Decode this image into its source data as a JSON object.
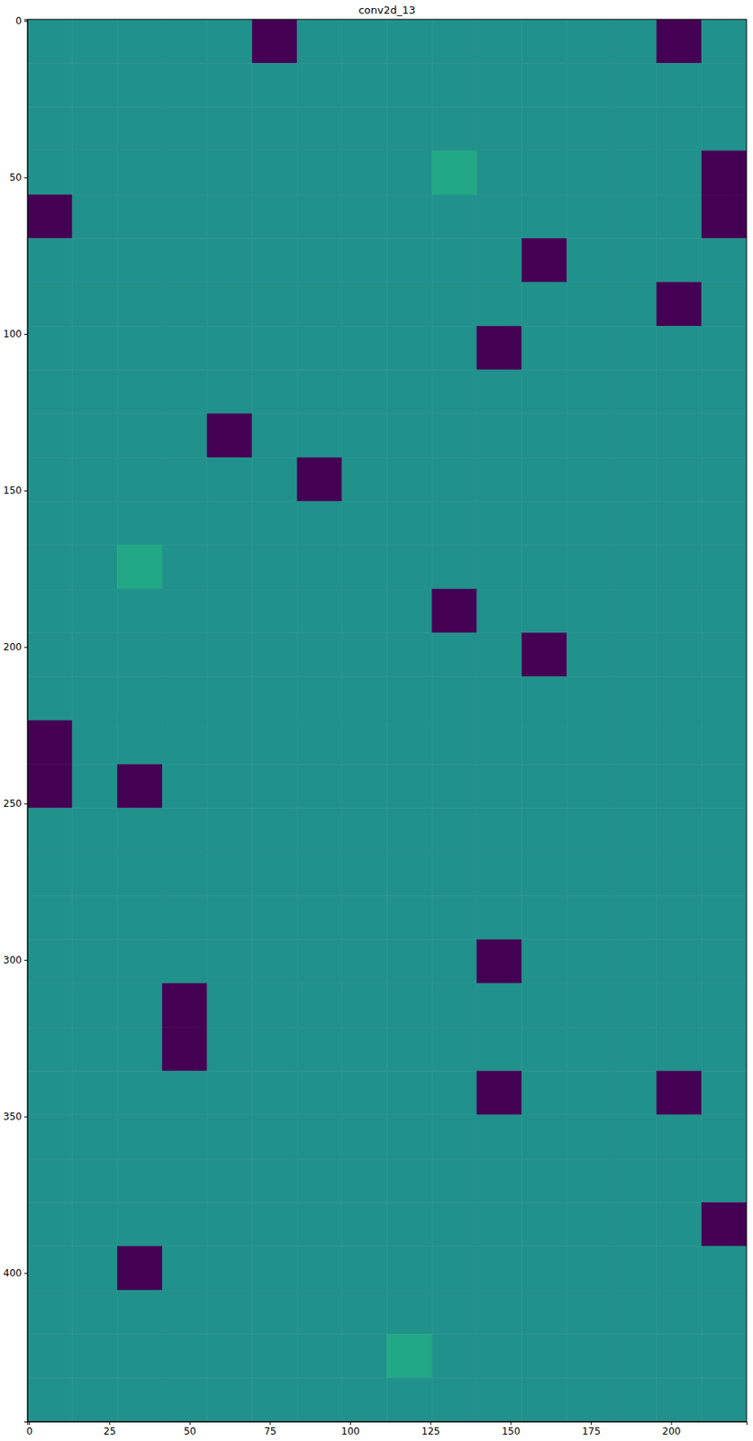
{
  "chart_data": {
    "type": "heatmap",
    "title": "conv2d_13",
    "xlim": [
      -0.5,
      223.5
    ],
    "ylim": [
      447.5,
      -0.5
    ],
    "xticks": [
      0,
      25,
      50,
      75,
      100,
      125,
      150,
      175,
      200
    ],
    "yticks": [
      0,
      50,
      100,
      150,
      200,
      250,
      300,
      350,
      400
    ],
    "x_edges": [
      -0.5,
      13.5,
      27.5,
      41.5,
      55.5,
      69.5,
      83.5,
      97.5,
      111.5,
      125.5,
      139.5,
      153.5,
      167.5,
      181.5,
      195.5,
      209.5,
      223.5
    ],
    "y_edges": [
      -0.5,
      13.5,
      27.5,
      41.5,
      55.5,
      69.5,
      83.5,
      97.5,
      111.5,
      125.5,
      139.5,
      153.5,
      167.5,
      181.5,
      195.5,
      209.5,
      223.5,
      237.5,
      251.5,
      265.5,
      279.5,
      293.5,
      307.5,
      321.5,
      335.5,
      349.5,
      363.5,
      377.5,
      391.5,
      405.5,
      419.5,
      433.5,
      447.5
    ],
    "clim": [
      0,
      1
    ],
    "cells": [
      [
        0.5,
        0.5,
        0.5,
        0.5,
        0.5,
        0,
        0.5,
        0.5,
        0.5,
        0.5,
        0.5,
        0.5,
        0.5,
        0.5,
        0,
        0.5
      ],
      [
        0.5,
        0.5,
        0.5,
        0.5,
        0.5,
        0.5,
        0.5,
        0.5,
        0.5,
        0.5,
        0.5,
        0.5,
        0.5,
        0.5,
        0.5,
        0.5
      ],
      [
        0.5,
        0.5,
        0.5,
        0.5,
        0.5,
        0.5,
        0.5,
        0.5,
        0.5,
        0.5,
        0.5,
        0.5,
        0.5,
        0.5,
        0.5,
        0.5
      ],
      [
        0.5,
        0.5,
        0.5,
        0.5,
        0.5,
        0.5,
        0.5,
        0.5,
        0.5,
        0.6,
        0.5,
        0.5,
        0.5,
        0.5,
        0.5,
        0
      ],
      [
        0,
        0.5,
        0.5,
        0.5,
        0.5,
        0.5,
        0.5,
        0.5,
        0.5,
        0.5,
        0.5,
        0.5,
        0.5,
        0.5,
        0.5,
        0
      ],
      [
        0.5,
        0.5,
        0.5,
        0.5,
        0.5,
        0.5,
        0.5,
        0.5,
        0.5,
        0.5,
        0.5,
        0,
        0.5,
        0.5,
        0.5,
        0.5
      ],
      [
        0.5,
        0.5,
        0.5,
        0.5,
        0.5,
        0.5,
        0.5,
        0.5,
        0.5,
        0.5,
        0.5,
        0.5,
        0.5,
        0.5,
        0,
        0.5
      ],
      [
        0.5,
        0.5,
        0.5,
        0.5,
        0.5,
        0.5,
        0.5,
        0.5,
        0.5,
        0.5,
        0,
        0.5,
        0.5,
        0.5,
        0.5,
        0.5
      ],
      [
        0.5,
        0.5,
        0.5,
        0.5,
        0.5,
        0.5,
        0.5,
        0.5,
        0.5,
        0.5,
        0.5,
        0.5,
        0.5,
        0.5,
        0.5,
        0.5
      ],
      [
        0.5,
        0.5,
        0.5,
        0.5,
        0,
        0.5,
        0.5,
        0.5,
        0.5,
        0.5,
        0.5,
        0.5,
        0.5,
        0.5,
        0.5,
        0.5
      ],
      [
        0.5,
        0.5,
        0.5,
        0.5,
        0.5,
        0.5,
        0,
        0.5,
        0.5,
        0.5,
        0.5,
        0.5,
        0.5,
        0.5,
        0.5,
        0.5
      ],
      [
        0.5,
        0.5,
        0.5,
        0.5,
        0.5,
        0.5,
        0.5,
        0.5,
        0.5,
        0.5,
        0.5,
        0.5,
        0.5,
        0.5,
        0.5,
        0.5
      ],
      [
        0.5,
        0.5,
        0.6,
        0.5,
        0.5,
        0.5,
        0.5,
        0.5,
        0.5,
        0.5,
        0.5,
        0.5,
        0.5,
        0.5,
        0.5,
        0.5
      ],
      [
        0.5,
        0.5,
        0.5,
        0.5,
        0.5,
        0.5,
        0.5,
        0.5,
        0.5,
        0,
        0.5,
        0.5,
        0.5,
        0.5,
        0.5,
        0.5
      ],
      [
        0.5,
        0.5,
        0.5,
        0.5,
        0.5,
        0.5,
        0.5,
        0.5,
        0.5,
        0.5,
        0.5,
        0,
        0.5,
        0.5,
        0.5,
        0.5
      ],
      [
        0.5,
        0.5,
        0.5,
        0.5,
        0.5,
        0.5,
        0.5,
        0.5,
        0.5,
        0.5,
        0.5,
        0.5,
        0.5,
        0.5,
        0.5,
        0.5
      ],
      [
        0,
        0.5,
        0.5,
        0.5,
        0.5,
        0.5,
        0.5,
        0.5,
        0.5,
        0.5,
        0.5,
        0.5,
        0.5,
        0.5,
        0.5,
        0.5
      ],
      [
        0,
        0.5,
        0,
        0.5,
        0.5,
        0.5,
        0.5,
        0.5,
        0.5,
        0.5,
        0.5,
        0.5,
        0.5,
        0.5,
        0.5,
        0.5
      ],
      [
        0.5,
        0.5,
        0.5,
        0.5,
        0.5,
        0.5,
        0.5,
        0.5,
        0.5,
        0.5,
        0.5,
        0.5,
        0.5,
        0.5,
        0.5,
        0.5
      ],
      [
        0.5,
        0.5,
        0.5,
        0.5,
        0.5,
        0.5,
        0.5,
        0.5,
        0.5,
        0.5,
        0.5,
        0.5,
        0.5,
        0.5,
        0.5,
        0.5
      ],
      [
        0.5,
        0.5,
        0.5,
        0.5,
        0.5,
        0.5,
        0.5,
        0.5,
        0.5,
        0.5,
        0.5,
        0.5,
        0.5,
        0.5,
        0.5,
        0.5
      ],
      [
        0.5,
        0.5,
        0.5,
        0.5,
        0.5,
        0.5,
        0.5,
        0.5,
        0.5,
        0.5,
        0,
        0.5,
        0.5,
        0.5,
        0.5,
        0.5
      ],
      [
        0.5,
        0.5,
        0.5,
        0,
        0.5,
        0.5,
        0.5,
        0.5,
        0.5,
        0.5,
        0.5,
        0.5,
        0.5,
        0.5,
        0.5,
        0.5
      ],
      [
        0.5,
        0.5,
        0.5,
        0,
        0.5,
        0.5,
        0.5,
        0.5,
        0.5,
        0.5,
        0.5,
        0.5,
        0.5,
        0.5,
        0.5,
        0.5
      ],
      [
        0.5,
        0.5,
        0.5,
        0.5,
        0.5,
        0.5,
        0.5,
        0.5,
        0.5,
        0.5,
        0,
        0.5,
        0.5,
        0.5,
        0,
        0.5
      ],
      [
        0.5,
        0.5,
        0.5,
        0.5,
        0.5,
        0.5,
        0.5,
        0.5,
        0.5,
        0.5,
        0.5,
        0.5,
        0.5,
        0.5,
        0.5,
        0.5
      ],
      [
        0.5,
        0.5,
        0.5,
        0.5,
        0.5,
        0.5,
        0.5,
        0.5,
        0.5,
        0.5,
        0.5,
        0.5,
        0.5,
        0.5,
        0.5,
        0.5
      ],
      [
        0.5,
        0.5,
        0.5,
        0.5,
        0.5,
        0.5,
        0.5,
        0.5,
        0.5,
        0.5,
        0.5,
        0.5,
        0.5,
        0.5,
        0.5,
        0
      ],
      [
        0.5,
        0.5,
        0,
        0.5,
        0.5,
        0.5,
        0.5,
        0.5,
        0.5,
        0.5,
        0.5,
        0.5,
        0.5,
        0.5,
        0.5,
        0.5
      ],
      [
        0.5,
        0.5,
        0.5,
        0.5,
        0.5,
        0.5,
        0.5,
        0.5,
        0.5,
        0.5,
        0.5,
        0.5,
        0.5,
        0.5,
        0.5,
        0.5
      ],
      [
        0.5,
        0.5,
        0.5,
        0.5,
        0.5,
        0.5,
        0.5,
        0.5,
        0.6,
        0.5,
        0.5,
        0.5,
        0.5,
        0.5,
        0.5,
        0.5
      ],
      [
        0.5,
        0.5,
        0.5,
        0.5,
        0.5,
        0.5,
        0.5,
        0.5,
        0.5,
        0.5,
        0.5,
        0.5,
        0.5,
        0.5,
        0.5,
        0.5
      ]
    ]
  }
}
